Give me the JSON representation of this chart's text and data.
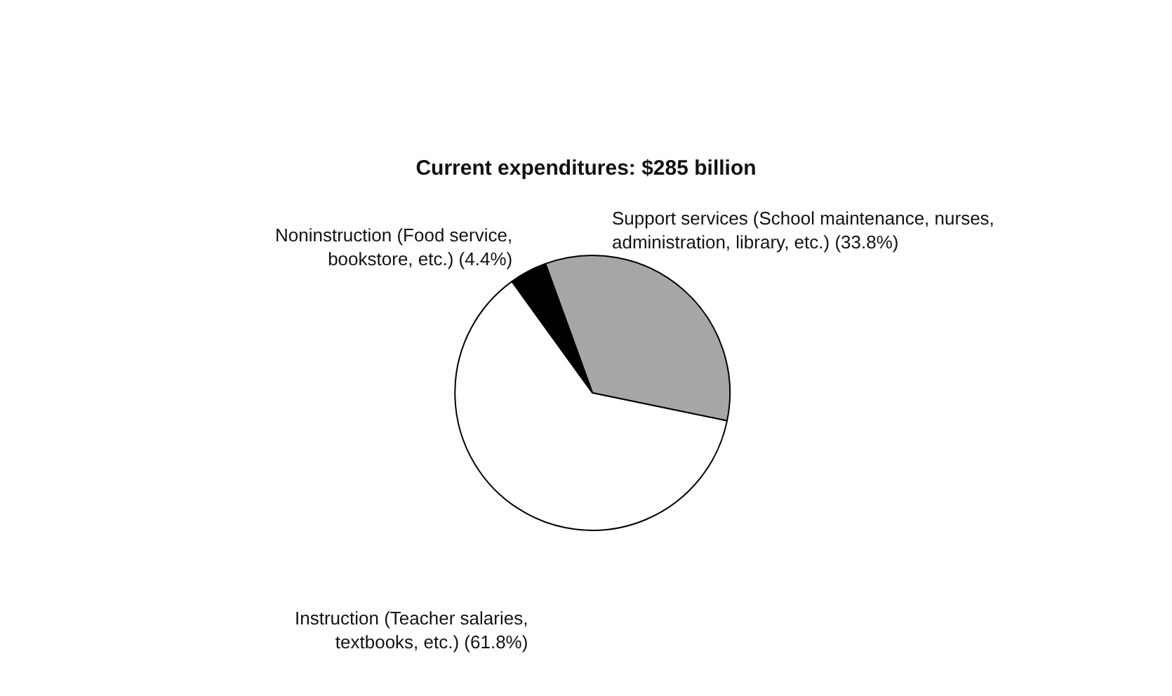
{
  "chart_data": {
    "type": "pie",
    "title": "Current expenditures: $285 billion",
    "categories": [
      "Support services (School maintenance, nurses, administration, library, etc.)",
      "Instruction (Teacher salaries, textbooks, etc.)",
      "Noninstruction (Food service, bookstore, etc.)"
    ],
    "values": [
      33.8,
      61.8,
      4.4
    ],
    "value_labels": [
      "(33.8%)",
      "(61.8%)",
      "(4.4%)"
    ],
    "colors": [
      "#a6a6a6",
      "#ffffff",
      "#000000"
    ],
    "legend": false
  }
}
